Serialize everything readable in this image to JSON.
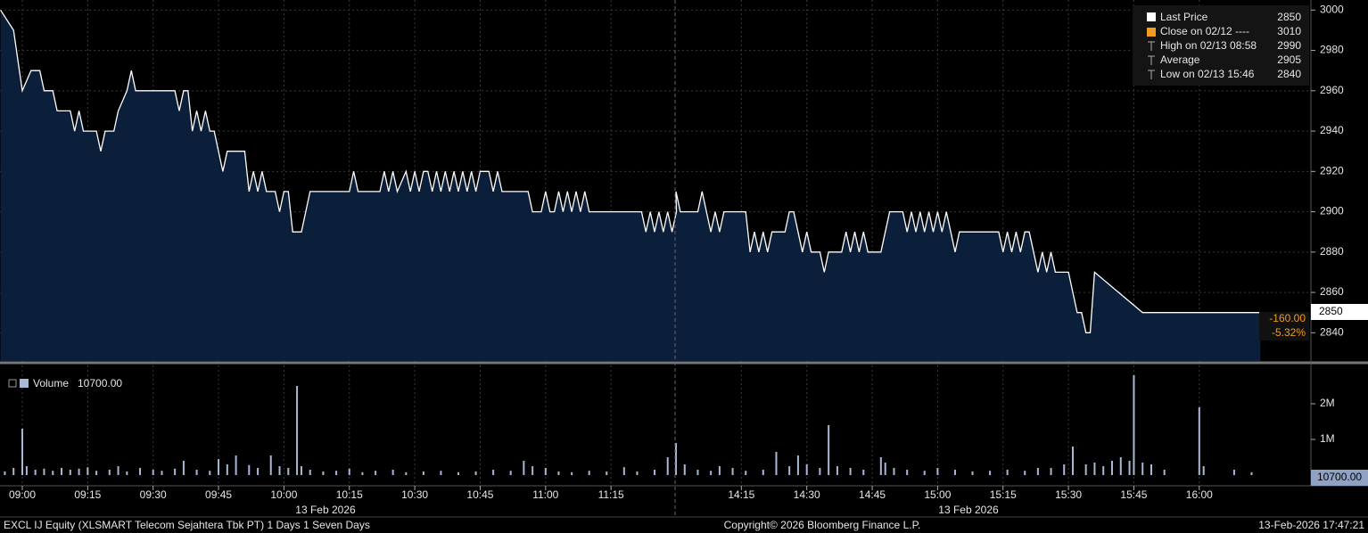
{
  "chart_data": [
    {
      "type": "line",
      "x": [
        "08:55",
        "08:58",
        "09:00",
        "09:02",
        "09:04",
        "09:05",
        "09:07",
        "09:08",
        "09:11",
        "09:12",
        "09:13",
        "09:14",
        "09:17",
        "09:18",
        "09:19",
        "09:21",
        "09:22",
        "09:24",
        "09:25",
        "09:26",
        "09:35",
        "09:36",
        "09:37",
        "09:38",
        "09:39",
        "09:40",
        "09:41",
        "09:42",
        "09:43",
        "09:44",
        "09:45",
        "09:46",
        "09:47",
        "09:51",
        "09:52",
        "09:53",
        "09:54",
        "09:55",
        "09:56",
        "09:58",
        "09:59",
        "10:00",
        "10:01",
        "10:02",
        "10:04",
        "10:06",
        "10:15",
        "10:16",
        "10:17",
        "10:22",
        "10:23",
        "10:24",
        "10:25",
        "10:26",
        "10:28",
        "10:29",
        "10:30",
        "10:31",
        "10:32",
        "10:33",
        "10:34",
        "10:35",
        "10:36",
        "10:37",
        "10:38",
        "10:39",
        "10:40",
        "10:41",
        "10:42",
        "10:43",
        "10:44",
        "10:45",
        "10:47",
        "10:48",
        "10:49",
        "10:50",
        "10:56",
        "10:57",
        "10:59",
        "11:00",
        "11:01",
        "11:02",
        "11:03",
        "11:04",
        "11:05",
        "11:06",
        "11:07",
        "11:08",
        "11:09",
        "11:10",
        "11:22",
        "11:23",
        "11:24",
        "11:25",
        "11:26",
        "11:27",
        "11:28",
        "11:29",
        "11:30",
        "14:00",
        "14:01",
        "14:05",
        "14:06",
        "14:07",
        "14:08",
        "14:09",
        "14:10",
        "14:11",
        "14:16",
        "14:17",
        "14:18",
        "14:19",
        "14:20",
        "14:21",
        "14:22",
        "14:25",
        "14:26",
        "14:27",
        "14:28",
        "14:29",
        "14:30",
        "14:31",
        "14:33",
        "14:34",
        "14:35",
        "14:38",
        "14:39",
        "14:40",
        "14:41",
        "14:42",
        "14:43",
        "14:44",
        "14:47",
        "14:48",
        "14:49",
        "14:52",
        "14:53",
        "14:54",
        "14:55",
        "14:56",
        "14:57",
        "14:58",
        "14:59",
        "15:00",
        "15:01",
        "15:02",
        "15:03",
        "15:04",
        "15:05",
        "15:14",
        "15:15",
        "15:16",
        "15:17",
        "15:18",
        "15:19",
        "15:20",
        "15:21",
        "15:22",
        "15:23",
        "15:24",
        "15:25",
        "15:26",
        "15:27",
        "15:30",
        "15:32",
        "15:33",
        "15:34",
        "15:35",
        "15:36",
        "15:47",
        "16:14"
      ],
      "series": [
        {
          "name": "Last Price",
          "color": "#ffffff",
          "values": [
            3000,
            2990,
            2960,
            2970,
            2970,
            2960,
            2960,
            2950,
            2950,
            2940,
            2950,
            2940,
            2940,
            2930,
            2940,
            2940,
            2950,
            2960,
            2970,
            2960,
            2960,
            2950,
            2960,
            2960,
            2940,
            2950,
            2940,
            2950,
            2940,
            2940,
            2930,
            2920,
            2930,
            2930,
            2910,
            2920,
            2910,
            2920,
            2910,
            2910,
            2900,
            2910,
            2910,
            2890,
            2890,
            2910,
            2910,
            2920,
            2910,
            2910,
            2920,
            2910,
            2920,
            2910,
            2920,
            2910,
            2920,
            2910,
            2920,
            2920,
            2910,
            2920,
            2910,
            2920,
            2910,
            2920,
            2910,
            2920,
            2910,
            2920,
            2910,
            2920,
            2920,
            2910,
            2920,
            2910,
            2910,
            2900,
            2900,
            2910,
            2900,
            2900,
            2910,
            2900,
            2910,
            2900,
            2910,
            2900,
            2910,
            2900,
            2900,
            2890,
            2900,
            2890,
            2900,
            2890,
            2900,
            2890,
            2900,
            2910,
            2900,
            2900,
            2910,
            2900,
            2890,
            2900,
            2890,
            2900,
            2900,
            2880,
            2890,
            2880,
            2890,
            2880,
            2890,
            2890,
            2900,
            2900,
            2890,
            2880,
            2890,
            2880,
            2880,
            2870,
            2880,
            2880,
            2890,
            2880,
            2890,
            2880,
            2890,
            2880,
            2880,
            2890,
            2900,
            2900,
            2890,
            2900,
            2890,
            2900,
            2890,
            2900,
            2890,
            2900,
            2890,
            2900,
            2890,
            2880,
            2890,
            2890,
            2880,
            2890,
            2880,
            2890,
            2880,
            2890,
            2890,
            2880,
            2870,
            2880,
            2870,
            2880,
            2870,
            2870,
            2850,
            2850,
            2840,
            2840,
            2870,
            2850,
            2850
          ]
        }
      ],
      "area_color": "#0b1f3a",
      "ylim": [
        2826,
        3005
      ],
      "yticks": [
        2840,
        2860,
        2880,
        2900,
        2920,
        2940,
        2960,
        2980,
        3000
      ],
      "grid": true,
      "last_value": 2850,
      "legend": [
        {
          "label": "Close on 02/12 ----",
          "value": 3010,
          "color": "#f39c1f"
        },
        {
          "label": "High on 02/13 08:58",
          "value": 2990
        },
        {
          "label": "Average",
          "value": 2905
        },
        {
          "label": "Low on 02/13 15:46",
          "value": 2840
        }
      ],
      "change": {
        "value": -160,
        "label": "-160.00"
      },
      "change_pct": {
        "value": -5.32,
        "label": "-5.32%"
      }
    },
    {
      "type": "bar",
      "x": [
        "08:56",
        "08:58",
        "09:00",
        "09:01",
        "09:03",
        "09:05",
        "09:07",
        "09:09",
        "09:11",
        "09:13",
        "09:15",
        "09:17",
        "09:20",
        "09:22",
        "09:24",
        "09:27",
        "09:30",
        "09:32",
        "09:35",
        "09:37",
        "09:40",
        "09:43",
        "09:45",
        "09:47",
        "09:49",
        "09:52",
        "09:54",
        "09:57",
        "09:59",
        "10:01",
        "10:03",
        "10:04",
        "10:06",
        "10:09",
        "10:12",
        "10:15",
        "10:18",
        "10:21",
        "10:25",
        "10:28",
        "10:32",
        "10:36",
        "10:40",
        "10:44",
        "10:48",
        "10:52",
        "10:55",
        "10:57",
        "11:00",
        "11:03",
        "11:06",
        "11:10",
        "11:14",
        "11:18",
        "11:21",
        "11:25",
        "11:28",
        "14:00",
        "14:02",
        "14:05",
        "14:08",
        "14:10",
        "14:13",
        "14:16",
        "14:20",
        "14:23",
        "14:26",
        "14:28",
        "14:30",
        "14:33",
        "14:35",
        "14:37",
        "14:40",
        "14:43",
        "14:47",
        "14:48",
        "14:50",
        "14:53",
        "14:57",
        "15:00",
        "15:04",
        "15:08",
        "15:12",
        "15:16",
        "15:20",
        "15:23",
        "15:26",
        "15:29",
        "15:31",
        "15:34",
        "15:36",
        "15:38",
        "15:40",
        "15:42",
        "15:44",
        "15:45",
        "15:47",
        "15:49",
        "15:52",
        "16:00",
        "16:01",
        "16:08",
        "16:12"
      ],
      "series": [
        {
          "name": "Volume",
          "color": "#a9b8d6",
          "values": [
            100000,
            200000,
            1300000,
            250000,
            150000,
            180000,
            120000,
            200000,
            150000,
            180000,
            220000,
            120000,
            150000,
            250000,
            100000,
            200000,
            150000,
            120000,
            180000,
            400000,
            150000,
            120000,
            450000,
            300000,
            550000,
            280000,
            200000,
            550000,
            250000,
            200000,
            2500000,
            250000,
            150000,
            100000,
            120000,
            180000,
            80000,
            120000,
            150000,
            80000,
            100000,
            120000,
            80000,
            100000,
            150000,
            120000,
            400000,
            250000,
            200000,
            100000,
            80000,
            120000,
            100000,
            220000,
            100000,
            150000,
            500000,
            900000,
            300000,
            150000,
            120000,
            250000,
            200000,
            120000,
            150000,
            650000,
            250000,
            550000,
            300000,
            200000,
            1400000,
            250000,
            200000,
            150000,
            500000,
            350000,
            200000,
            150000,
            120000,
            200000,
            150000,
            100000,
            120000,
            150000,
            120000,
            200000,
            200000,
            300000,
            800000,
            300000,
            350000,
            250000,
            400000,
            500000,
            400000,
            2800000,
            350000,
            300000,
            150000,
            1900000,
            250000,
            150000,
            80000
          ]
        }
      ],
      "ylim": [
        0,
        3000000
      ],
      "yticks": [
        {
          "value": 1000000,
          "label": "1M"
        },
        {
          "value": 2000000,
          "label": "2M"
        }
      ],
      "last_value": {
        "value": 10700,
        "label": "10700.00"
      },
      "xticks": [
        "09:00",
        "09:15",
        "09:30",
        "09:45",
        "10:00",
        "10:15",
        "10:30",
        "10:45",
        "11:00",
        "11:15",
        "14:15",
        "14:30",
        "14:45",
        "15:00",
        "15:15",
        "15:30",
        "15:45",
        "16:00"
      ],
      "date_labels": [
        "13 Feb 2026",
        "13 Feb 2026"
      ]
    }
  ],
  "footer": {
    "security": "EXCL IJ Equity (XLSMART Telecom Sejahtera Tbk PT) 1 Days 1 Seven Days",
    "copyright": "Copyright© 2026 Bloomberg Finance L.P.",
    "timestamp": "13-Feb-2026 17:47:21"
  }
}
